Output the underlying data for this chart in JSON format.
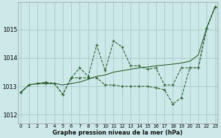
{
  "xlabel": "Graphe pression niveau de la mer (hPa)",
  "bg_color": "#cce8e8",
  "grid_color": "#aacccc",
  "line_color": "#2a5c2a",
  "ylim": [
    1011.7,
    1015.95
  ],
  "xlim": [
    -0.3,
    23.3
  ],
  "yticks": [
    1012,
    1013,
    1014,
    1015
  ],
  "xticks": [
    0,
    1,
    2,
    3,
    4,
    5,
    6,
    7,
    8,
    9,
    10,
    11,
    12,
    13,
    14,
    15,
    16,
    17,
    18,
    19,
    20,
    21,
    22,
    23
  ],
  "series": [
    {
      "y": [
        1012.78,
        1013.05,
        1013.1,
        1013.1,
        1013.1,
        1013.05,
        1013.1,
        1013.15,
        1013.25,
        1013.35,
        1013.4,
        1013.5,
        1013.55,
        1013.6,
        1013.65,
        1013.68,
        1013.72,
        1013.75,
        1013.78,
        1013.82,
        1013.88,
        1014.1,
        1015.05,
        1015.8
      ],
      "style": "solid",
      "marker": false
    },
    {
      "y": [
        1012.78,
        1013.05,
        1013.1,
        1013.1,
        1013.1,
        1012.72,
        1013.3,
        1013.65,
        1013.35,
        1014.45,
        1013.55,
        1014.6,
        1014.38,
        1013.72,
        1013.72,
        1013.6,
        1013.65,
        1013.05,
        1013.05,
        1013.65,
        1013.65,
        1013.65,
        1015.05,
        1015.8
      ],
      "style": "dashed",
      "marker": true
    },
    {
      "y": [
        1012.78,
        1013.05,
        1013.1,
        1013.15,
        1013.1,
        1012.72,
        1013.3,
        1013.3,
        1013.3,
        1013.3,
        1013.05,
        1013.05,
        1013.0,
        1013.0,
        1013.0,
        1013.0,
        1012.95,
        1012.88,
        1012.38,
        1012.6,
        1013.65,
        1013.65,
        1015.05,
        1015.8
      ],
      "style": "dashed",
      "marker": true
    }
  ]
}
